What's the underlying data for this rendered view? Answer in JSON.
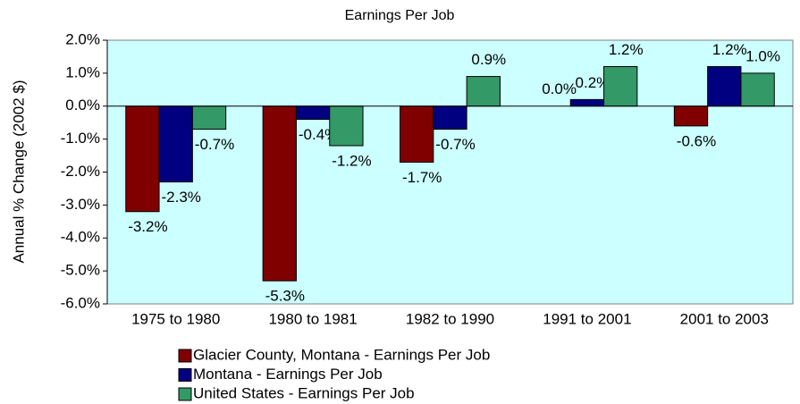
{
  "chart_data": {
    "type": "bar",
    "title": "Earnings Per Job",
    "y_label": "Annual % Change (2002 $)",
    "categories": [
      "1975 to 1980",
      "1980 to 1981",
      "1982 to 1990",
      "1991 to 2001",
      "2001 to 2003"
    ],
    "series": [
      {
        "name": "Glacier County, Montana - Earnings Per Job",
        "color": "#800000",
        "values": [
          -3.2,
          -5.3,
          -1.7,
          0.0,
          -0.6
        ],
        "value_labels": [
          "-3.2%",
          "-5.3%",
          "-1.7%",
          "0.0%",
          "-0.6%"
        ]
      },
      {
        "name": "Montana - Earnings Per Job",
        "color": "#000080",
        "values": [
          -2.3,
          -0.4,
          -0.7,
          0.2,
          1.2
        ],
        "value_labels": [
          "-2.3%",
          "-0.4%",
          "-0.7%",
          "0.2%",
          "1.2%"
        ]
      },
      {
        "name": "United States - Earnings Per Job",
        "color": "#339966",
        "values": [
          -0.7,
          -1.2,
          0.9,
          1.2,
          1.0
        ],
        "value_labels": [
          "-0.7%",
          "-1.2%",
          "0.9%",
          "1.2%",
          "1.0%"
        ]
      }
    ],
    "ylim": [
      -6,
      2
    ],
    "yticks": [
      {
        "value": 2,
        "label": "2.0%"
      },
      {
        "value": 1,
        "label": "1.0%"
      },
      {
        "value": 0,
        "label": "0.0%"
      },
      {
        "value": -1,
        "label": "-1.0%"
      },
      {
        "value": -2,
        "label": "-2.0%"
      },
      {
        "value": -3,
        "label": "-3.0%"
      },
      {
        "value": -4,
        "label": "-4.0%"
      },
      {
        "value": -5,
        "label": "-5.0%"
      },
      {
        "value": -6,
        "label": "-6.0%"
      }
    ],
    "grid": false,
    "legend": "bottom",
    "background": "#ccffff"
  }
}
